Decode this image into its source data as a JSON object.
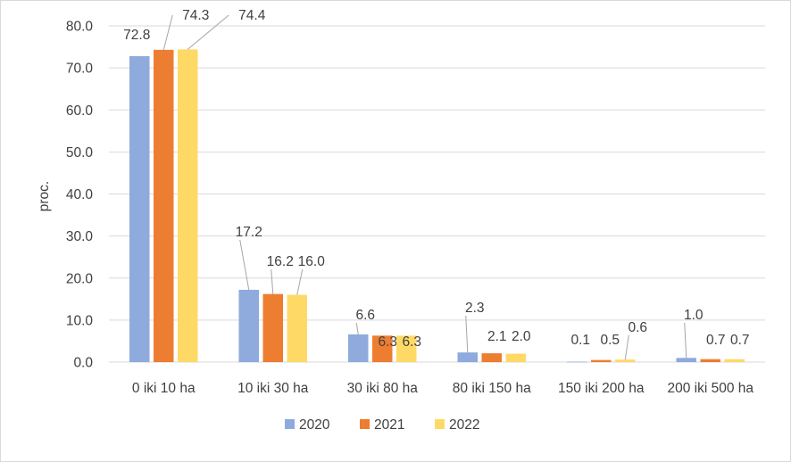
{
  "chart_data": {
    "type": "bar",
    "title": "",
    "xlabel": "",
    "ylabel": "proc.",
    "ylim": [
      0,
      80
    ],
    "yticks": [
      "0.0",
      "10.0",
      "20.0",
      "30.0",
      "40.0",
      "50.0",
      "60.0",
      "70.0",
      "80.0"
    ],
    "categories": [
      "0 iki 10 ha",
      "10 iki 30 ha",
      "30 iki 80 ha",
      "80 iki 150 ha",
      "150 iki 200 ha",
      "200 iki 500 ha"
    ],
    "series": [
      {
        "name": "2020",
        "color": "#8faadc",
        "values": [
          72.8,
          17.2,
          6.6,
          2.3,
          0.1,
          1.0
        ],
        "labels": [
          "72.8",
          "17.2",
          "6.6",
          "2.3",
          "0.1",
          "1.0"
        ]
      },
      {
        "name": "2021",
        "color": "#ed7d31",
        "values": [
          74.3,
          16.2,
          6.3,
          2.1,
          0.5,
          0.7
        ],
        "labels": [
          "74.3",
          "16.2",
          "6.3",
          "2.1",
          "0.5",
          "0.7"
        ]
      },
      {
        "name": "2022",
        "color": "#ffd966",
        "values": [
          74.4,
          16.0,
          6.3,
          2.0,
          0.6,
          0.7
        ],
        "labels": [
          "74.4",
          "16.0",
          "6.3",
          "2.0",
          "0.6",
          "0.7"
        ]
      }
    ],
    "grid": true,
    "legend": "bottom"
  }
}
